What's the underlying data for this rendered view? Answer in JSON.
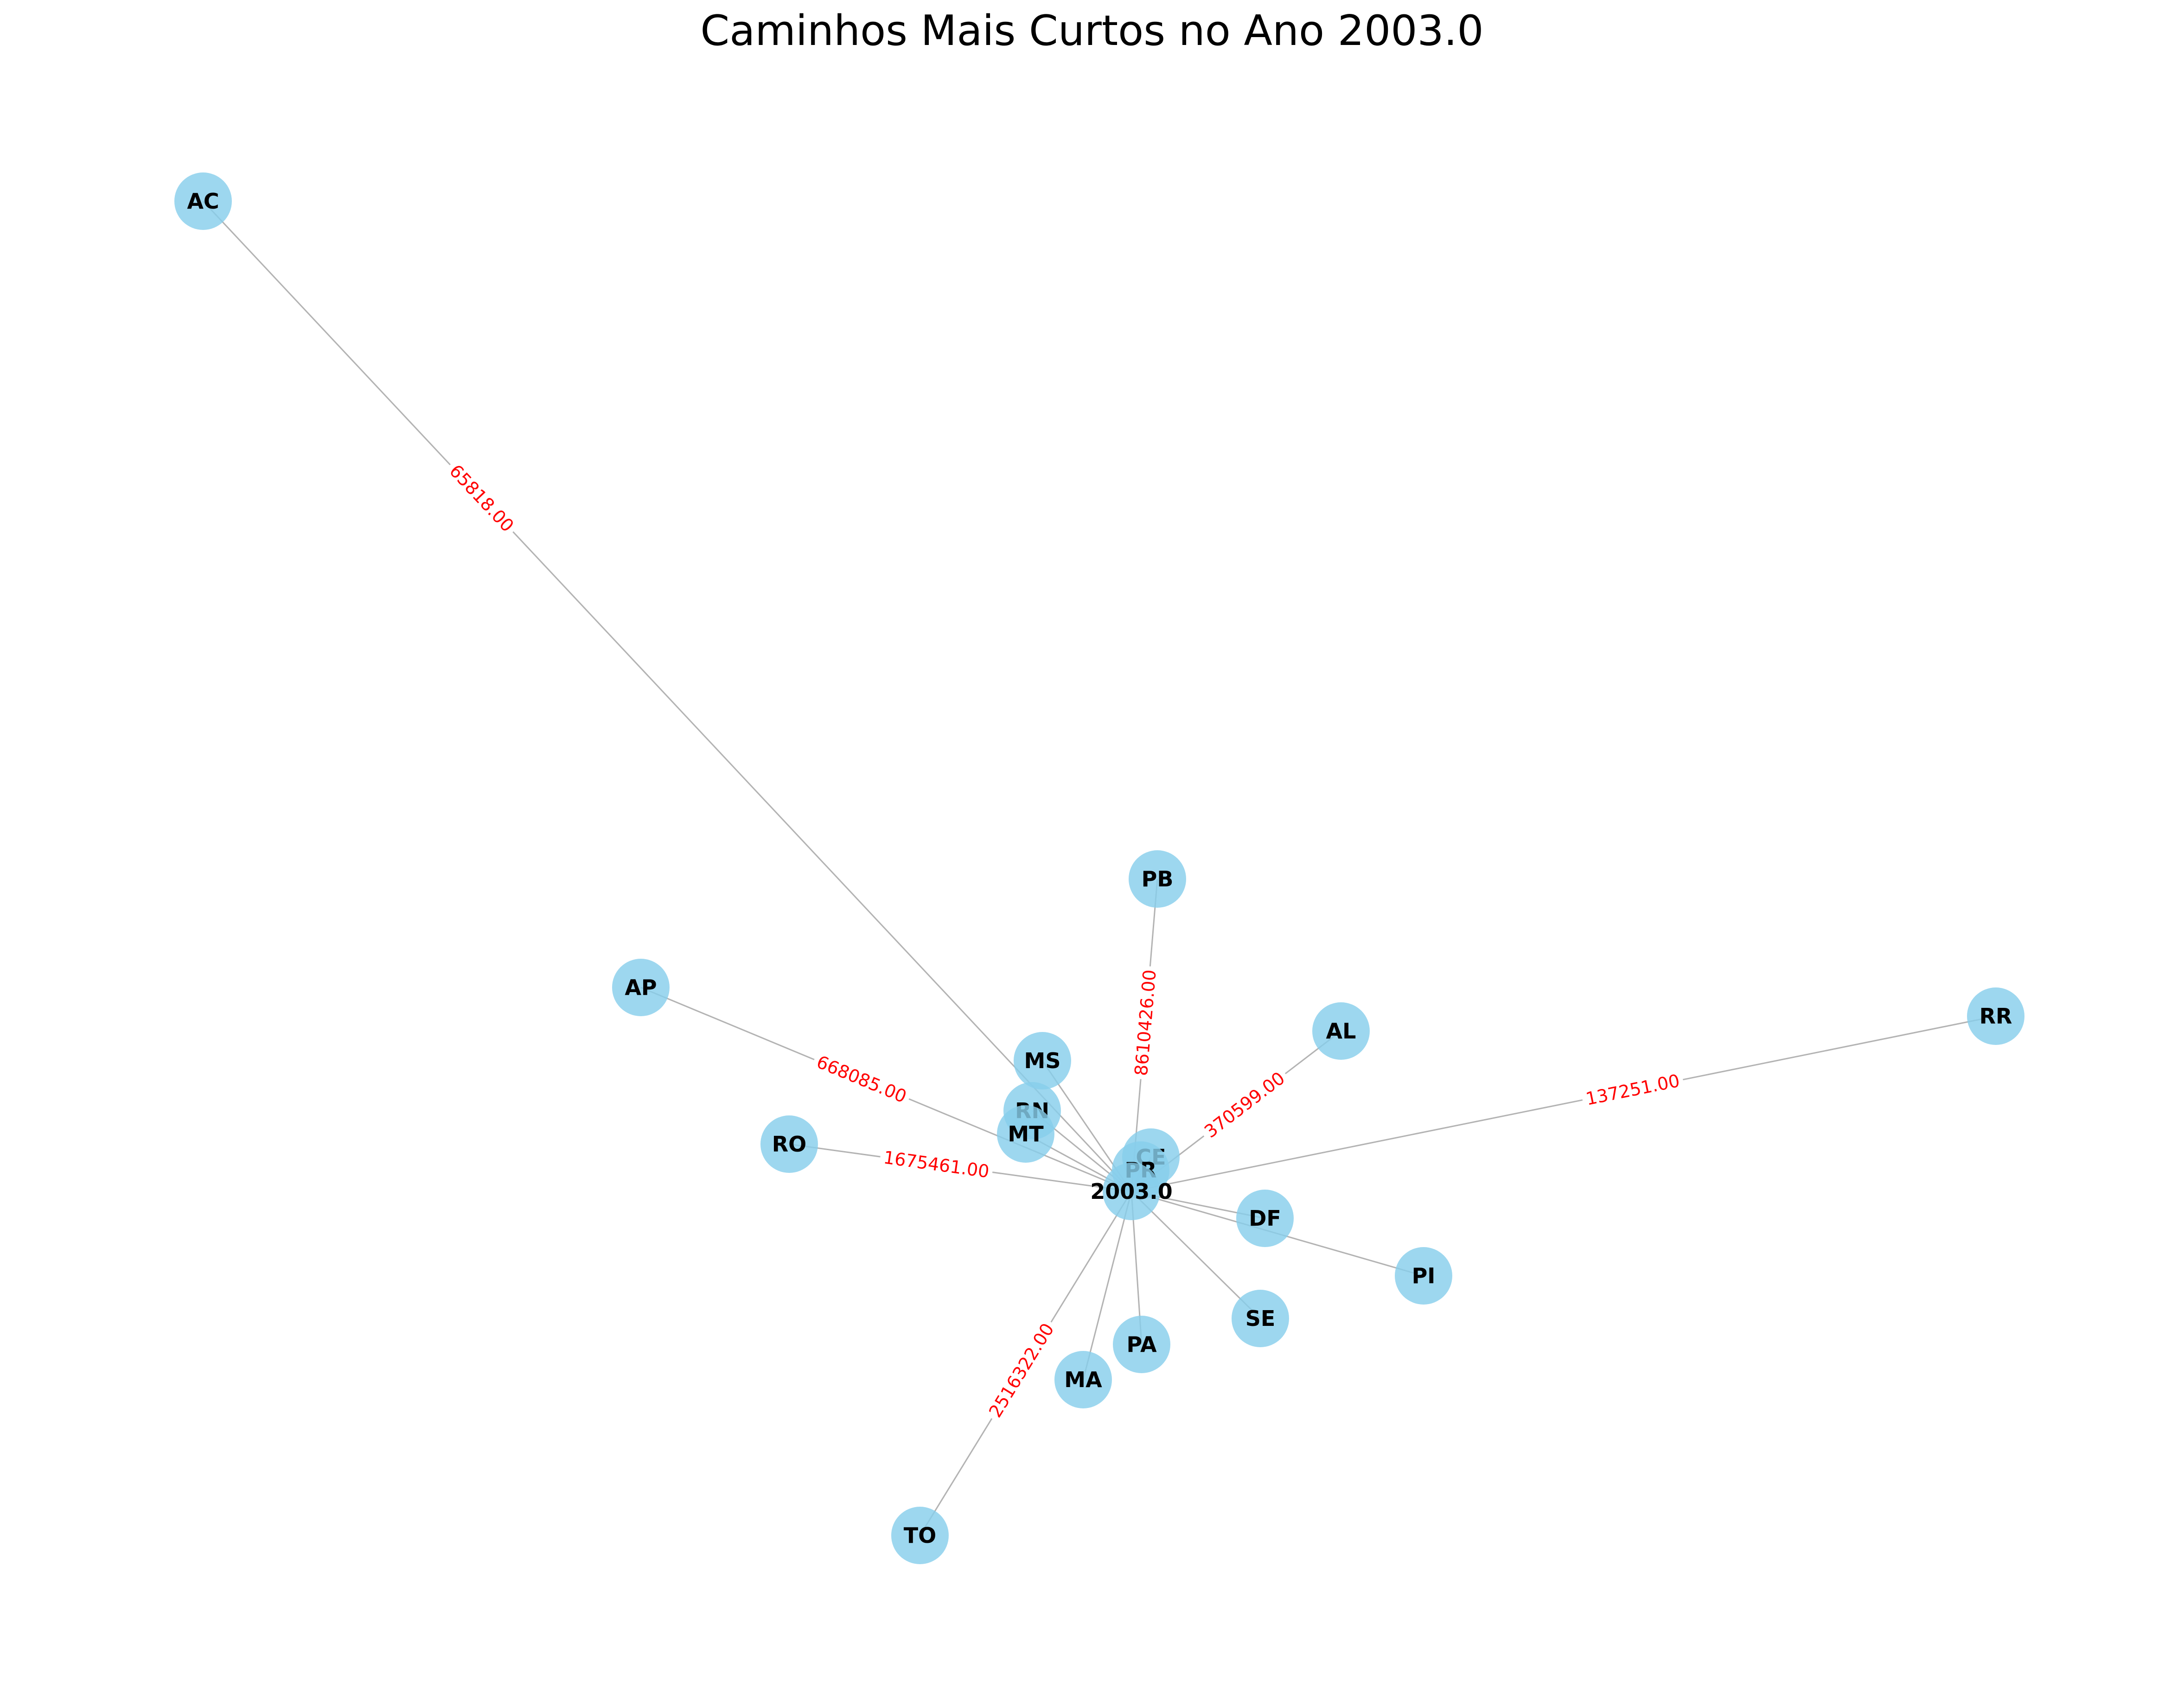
{
  "title": "Caminhos Mais Curtos no Ano 2003.0",
  "colors": {
    "node": "#87ceeb",
    "edge": "#b3b3b3",
    "edge_label": "#ff0000",
    "node_label": "#000000"
  },
  "hub": {
    "id": "2003.0",
    "label": "2003.0"
  },
  "nodes": [
    {
      "id": "AC",
      "label": "AC",
      "edge_weight": "65818.00"
    },
    {
      "id": "PB",
      "label": "PB",
      "edge_weight": "8610426.00"
    },
    {
      "id": "AP",
      "label": "AP",
      "edge_weight": "668085.00"
    },
    {
      "id": "AL",
      "label": "AL",
      "edge_weight": "370599.00"
    },
    {
      "id": "RR",
      "label": "RR",
      "edge_weight": "137251.00"
    },
    {
      "id": "MS",
      "label": "MS",
      "edge_weight": ""
    },
    {
      "id": "RN",
      "label": "RN",
      "edge_weight": ""
    },
    {
      "id": "RO",
      "label": "RO",
      "edge_weight": "1675461.00"
    },
    {
      "id": "MT",
      "label": "MT",
      "edge_weight": ""
    },
    {
      "id": "DF",
      "label": "DF",
      "edge_weight": ""
    },
    {
      "id": "PI",
      "label": "PI",
      "edge_weight": ""
    },
    {
      "id": "SE",
      "label": "SE",
      "edge_weight": ""
    },
    {
      "id": "PA",
      "label": "PA",
      "edge_weight": ""
    },
    {
      "id": "MA",
      "label": "MA",
      "edge_weight": ""
    },
    {
      "id": "TO",
      "label": "TO",
      "edge_weight": "2516322.00"
    },
    {
      "id": "CE",
      "label": "CE",
      "edge_weight": ""
    },
    {
      "id": "PR",
      "label": "PR",
      "edge_weight": ""
    }
  ]
}
